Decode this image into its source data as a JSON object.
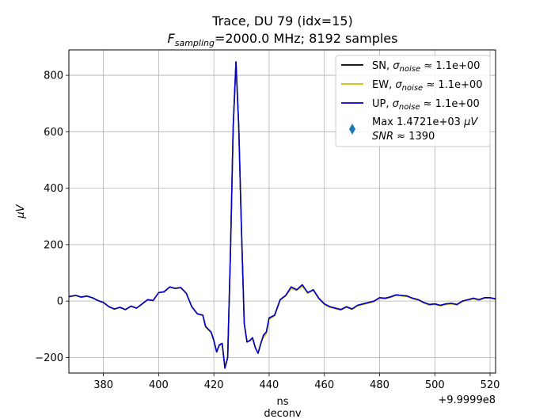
{
  "chart_data": {
    "type": "line",
    "title_line1": "Trace, DU 79 (idx=15)",
    "title_line2_sym": "F",
    "title_line2_sub": "sampling",
    "title_line2_rest": "=2000.0 MHz; 8192 samples",
    "xlabel": "ns",
    "xlabel2": "deconv",
    "ylabel": "μV",
    "x_offset_label": "+9.9999e8",
    "xlim": [
      367.5,
      522
    ],
    "ylim": [
      -255,
      890
    ],
    "xticks": [
      380,
      400,
      420,
      440,
      460,
      480,
      500,
      520
    ],
    "yticks": [
      -200,
      0,
      200,
      400,
      600,
      800
    ],
    "grid": true,
    "legend_position": "top-right",
    "series": [
      {
        "name": "SN",
        "legend_sigma": "σ",
        "legend_sub": "noise",
        "legend_rest": " ≈ 1.1e+00",
        "color": "#000000",
        "x": [
          367.5,
          370,
          372,
          374,
          376,
          378,
          380,
          382,
          384,
          386,
          388,
          390,
          392,
          394,
          396,
          398,
          400,
          402,
          404,
          406,
          408,
          410,
          412,
          414,
          416,
          417,
          418,
          419,
          420,
          421,
          422,
          423,
          424,
          425,
          426,
          427,
          428,
          429,
          430,
          431,
          432,
          433,
          434,
          435,
          436,
          437,
          438,
          439,
          440,
          442,
          444,
          446,
          448,
          450,
          452,
          454,
          456,
          458,
          460,
          462,
          464,
          466,
          468,
          470,
          472,
          474,
          476,
          478,
          480,
          482,
          484,
          486,
          488,
          490,
          492,
          494,
          496,
          498,
          500,
          502,
          504,
          506,
          508,
          510,
          512,
          514,
          516,
          518,
          520,
          522
        ],
        "y": [
          16,
          20,
          14,
          18,
          12,
          2,
          -5,
          -20,
          -28,
          -22,
          -30,
          -18,
          -25,
          -10,
          5,
          2,
          30,
          33,
          50,
          45,
          48,
          28,
          -20,
          -45,
          -50,
          -90,
          -100,
          -110,
          -140,
          -180,
          -155,
          -150,
          -235,
          -200,
          170,
          620,
          845,
          620,
          250,
          -80,
          -145,
          -140,
          -130,
          -165,
          -185,
          -150,
          -120,
          -110,
          -60,
          -50,
          5,
          20,
          50,
          40,
          55,
          30,
          40,
          10,
          -10,
          -20,
          -25,
          -30,
          -20,
          -28,
          -15,
          -10,
          -5,
          0,
          12,
          10,
          15,
          22,
          20,
          18,
          10,
          5,
          -5,
          -12,
          -10,
          -15,
          -10,
          -8,
          -12,
          0,
          5,
          10,
          5,
          12,
          12,
          8
        ]
      },
      {
        "name": "EW",
        "legend_sigma": "σ",
        "legend_sub": "noise",
        "legend_rest": " ≈ 1.1e+00",
        "color": "#c8c000",
        "x": [
          367.5,
          370,
          372,
          374,
          376,
          378,
          380,
          382,
          384,
          386,
          388,
          390,
          392,
          394,
          396,
          398,
          400,
          402,
          404,
          406,
          408,
          410,
          412,
          414,
          416,
          417,
          418,
          419,
          420,
          421,
          422,
          423,
          424,
          425,
          426,
          427,
          428,
          429,
          430,
          431,
          432,
          433,
          434,
          435,
          436,
          437,
          438,
          439,
          440,
          442,
          444,
          446,
          448,
          450,
          452,
          454,
          456,
          458,
          460,
          462,
          464,
          466,
          468,
          470,
          472,
          474,
          476,
          478,
          480,
          482,
          484,
          486,
          488,
          490,
          492,
          494,
          496,
          498,
          500,
          502,
          504,
          506,
          508,
          510,
          512,
          514,
          516,
          518,
          520,
          522
        ],
        "y": [
          15,
          19,
          13,
          17,
          11,
          1,
          -6,
          -21,
          -29,
          -23,
          -31,
          -19,
          -26,
          -11,
          4,
          1,
          29,
          32,
          49,
          44,
          47,
          27,
          -21,
          -46,
          -51,
          -92,
          -102,
          -112,
          -142,
          -178,
          -158,
          -152,
          -232,
          -198,
          168,
          615,
          840,
          615,
          248,
          -78,
          -143,
          -142,
          -132,
          -167,
          -183,
          -148,
          -128,
          -115,
          -65,
          -52,
          3,
          18,
          45,
          38,
          52,
          28,
          38,
          8,
          -12,
          -22,
          -27,
          -32,
          -22,
          -30,
          -17,
          -12,
          -7,
          -2,
          10,
          8,
          13,
          20,
          18,
          16,
          8,
          3,
          -7,
          -14,
          -12,
          -17,
          -12,
          -10,
          -14,
          -2,
          3,
          8,
          3,
          10,
          10,
          6
        ]
      },
      {
        "name": "UP",
        "legend_sigma": "σ",
        "legend_sub": "noise",
        "legend_rest": " ≈ 1.1e+00",
        "color": "#0000cc",
        "x": [
          367.5,
          370,
          372,
          374,
          376,
          378,
          380,
          382,
          384,
          386,
          388,
          390,
          392,
          394,
          396,
          398,
          400,
          402,
          404,
          406,
          408,
          410,
          412,
          414,
          416,
          417,
          418,
          419,
          420,
          421,
          422,
          423,
          424,
          425,
          426,
          427,
          428,
          429,
          430,
          431,
          432,
          433,
          434,
          435,
          436,
          437,
          438,
          439,
          440,
          442,
          444,
          446,
          448,
          450,
          452,
          454,
          456,
          458,
          460,
          462,
          464,
          466,
          468,
          470,
          472,
          474,
          476,
          478,
          480,
          482,
          484,
          486,
          488,
          490,
          492,
          494,
          496,
          498,
          500,
          502,
          504,
          506,
          508,
          510,
          512,
          514,
          516,
          518,
          520,
          522
        ],
        "y": [
          16,
          20,
          14,
          18,
          12,
          2,
          -5,
          -20,
          -28,
          -22,
          -30,
          -18,
          -25,
          -10,
          5,
          2,
          30,
          33,
          50,
          45,
          48,
          28,
          -20,
          -45,
          -50,
          -90,
          -100,
          -110,
          -140,
          -180,
          -155,
          -150,
          -238,
          -200,
          170,
          620,
          848,
          620,
          250,
          -80,
          -145,
          -140,
          -130,
          -165,
          -185,
          -150,
          -120,
          -110,
          -60,
          -50,
          5,
          20,
          50,
          40,
          58,
          30,
          40,
          10,
          -10,
          -20,
          -25,
          -30,
          -20,
          -28,
          -15,
          -10,
          -5,
          0,
          12,
          10,
          15,
          22,
          20,
          18,
          10,
          5,
          -5,
          -12,
          -10,
          -15,
          -10,
          -8,
          -12,
          0,
          5,
          10,
          5,
          12,
          12,
          8
        ]
      }
    ],
    "marker_legend": {
      "label_line1_prefix": "Max 1.4721e+03 ",
      "label_line1_unit": "μV",
      "label_line2_sym": "SNR",
      "label_line2_rest": " ≈ 1390",
      "color": "#1f77b4"
    }
  }
}
